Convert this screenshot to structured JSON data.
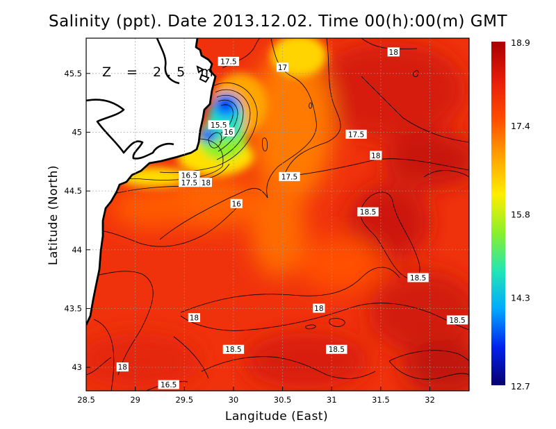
{
  "title": "Salinity (ppt). Date 2013.12.02. Time 00(h):00(m) GMT",
  "depth_label": "Z = 2.5 m",
  "chart_data": {
    "type": "heatmap",
    "xlabel": "Langitude (East)",
    "ylabel": "Latitude (North)",
    "xlim": [
      28.5,
      32.4
    ],
    "ylim": [
      42.8,
      45.8
    ],
    "x_ticks": [
      "28.5",
      "29",
      "29.5",
      "30",
      "30.5",
      "31",
      "31.5",
      "32"
    ],
    "y_ticks": [
      "43",
      "43.5",
      "44",
      "44.5",
      "45",
      "45.5"
    ],
    "colorbar": {
      "min": 12.7,
      "max": 18.9,
      "ticks": [
        "12.7",
        "14.3",
        "15.8",
        "17.4",
        "18.9"
      ]
    },
    "contour_labels": [
      {
        "text": "18",
        "lon": 31.63,
        "lat": 45.68
      },
      {
        "text": "17.5",
        "lon": 29.95,
        "lat": 45.6
      },
      {
        "text": "17",
        "lon": 30.5,
        "lat": 45.55
      },
      {
        "text": "15.5",
        "lon": 29.85,
        "lat": 45.06
      },
      {
        "text": "16",
        "lon": 29.95,
        "lat": 45.0
      },
      {
        "text": "17.5",
        "lon": 31.25,
        "lat": 44.98
      },
      {
        "text": "18",
        "lon": 31.45,
        "lat": 44.8
      },
      {
        "text": "16.5",
        "lon": 29.55,
        "lat": 44.63
      },
      {
        "text": "17.5",
        "lon": 29.55,
        "lat": 44.57
      },
      {
        "text": "18",
        "lon": 29.72,
        "lat": 44.57
      },
      {
        "text": "17.5",
        "lon": 30.57,
        "lat": 44.62
      },
      {
        "text": "16",
        "lon": 30.03,
        "lat": 44.39
      },
      {
        "text": "18.5",
        "lon": 31.37,
        "lat": 44.32
      },
      {
        "text": "18.5",
        "lon": 31.88,
        "lat": 43.76
      },
      {
        "text": "18",
        "lon": 30.87,
        "lat": 43.5
      },
      {
        "text": "18",
        "lon": 29.6,
        "lat": 43.42
      },
      {
        "text": "18.5",
        "lon": 32.28,
        "lat": 43.4
      },
      {
        "text": "18.5",
        "lon": 30.0,
        "lat": 43.15
      },
      {
        "text": "18.5",
        "lon": 31.05,
        "lat": 43.15
      },
      {
        "text": "18",
        "lon": 28.87,
        "lat": 43.0
      },
      {
        "text": "16.5",
        "lon": 29.34,
        "lat": 42.85
      }
    ],
    "grid": true,
    "colormap": [
      "#08006e",
      "#0022ee",
      "#00aaff",
      "#22e6b4",
      "#8af02a",
      "#ffee00",
      "#ffa100",
      "#ff4a00",
      "#e61c0a",
      "#a80000"
    ]
  }
}
